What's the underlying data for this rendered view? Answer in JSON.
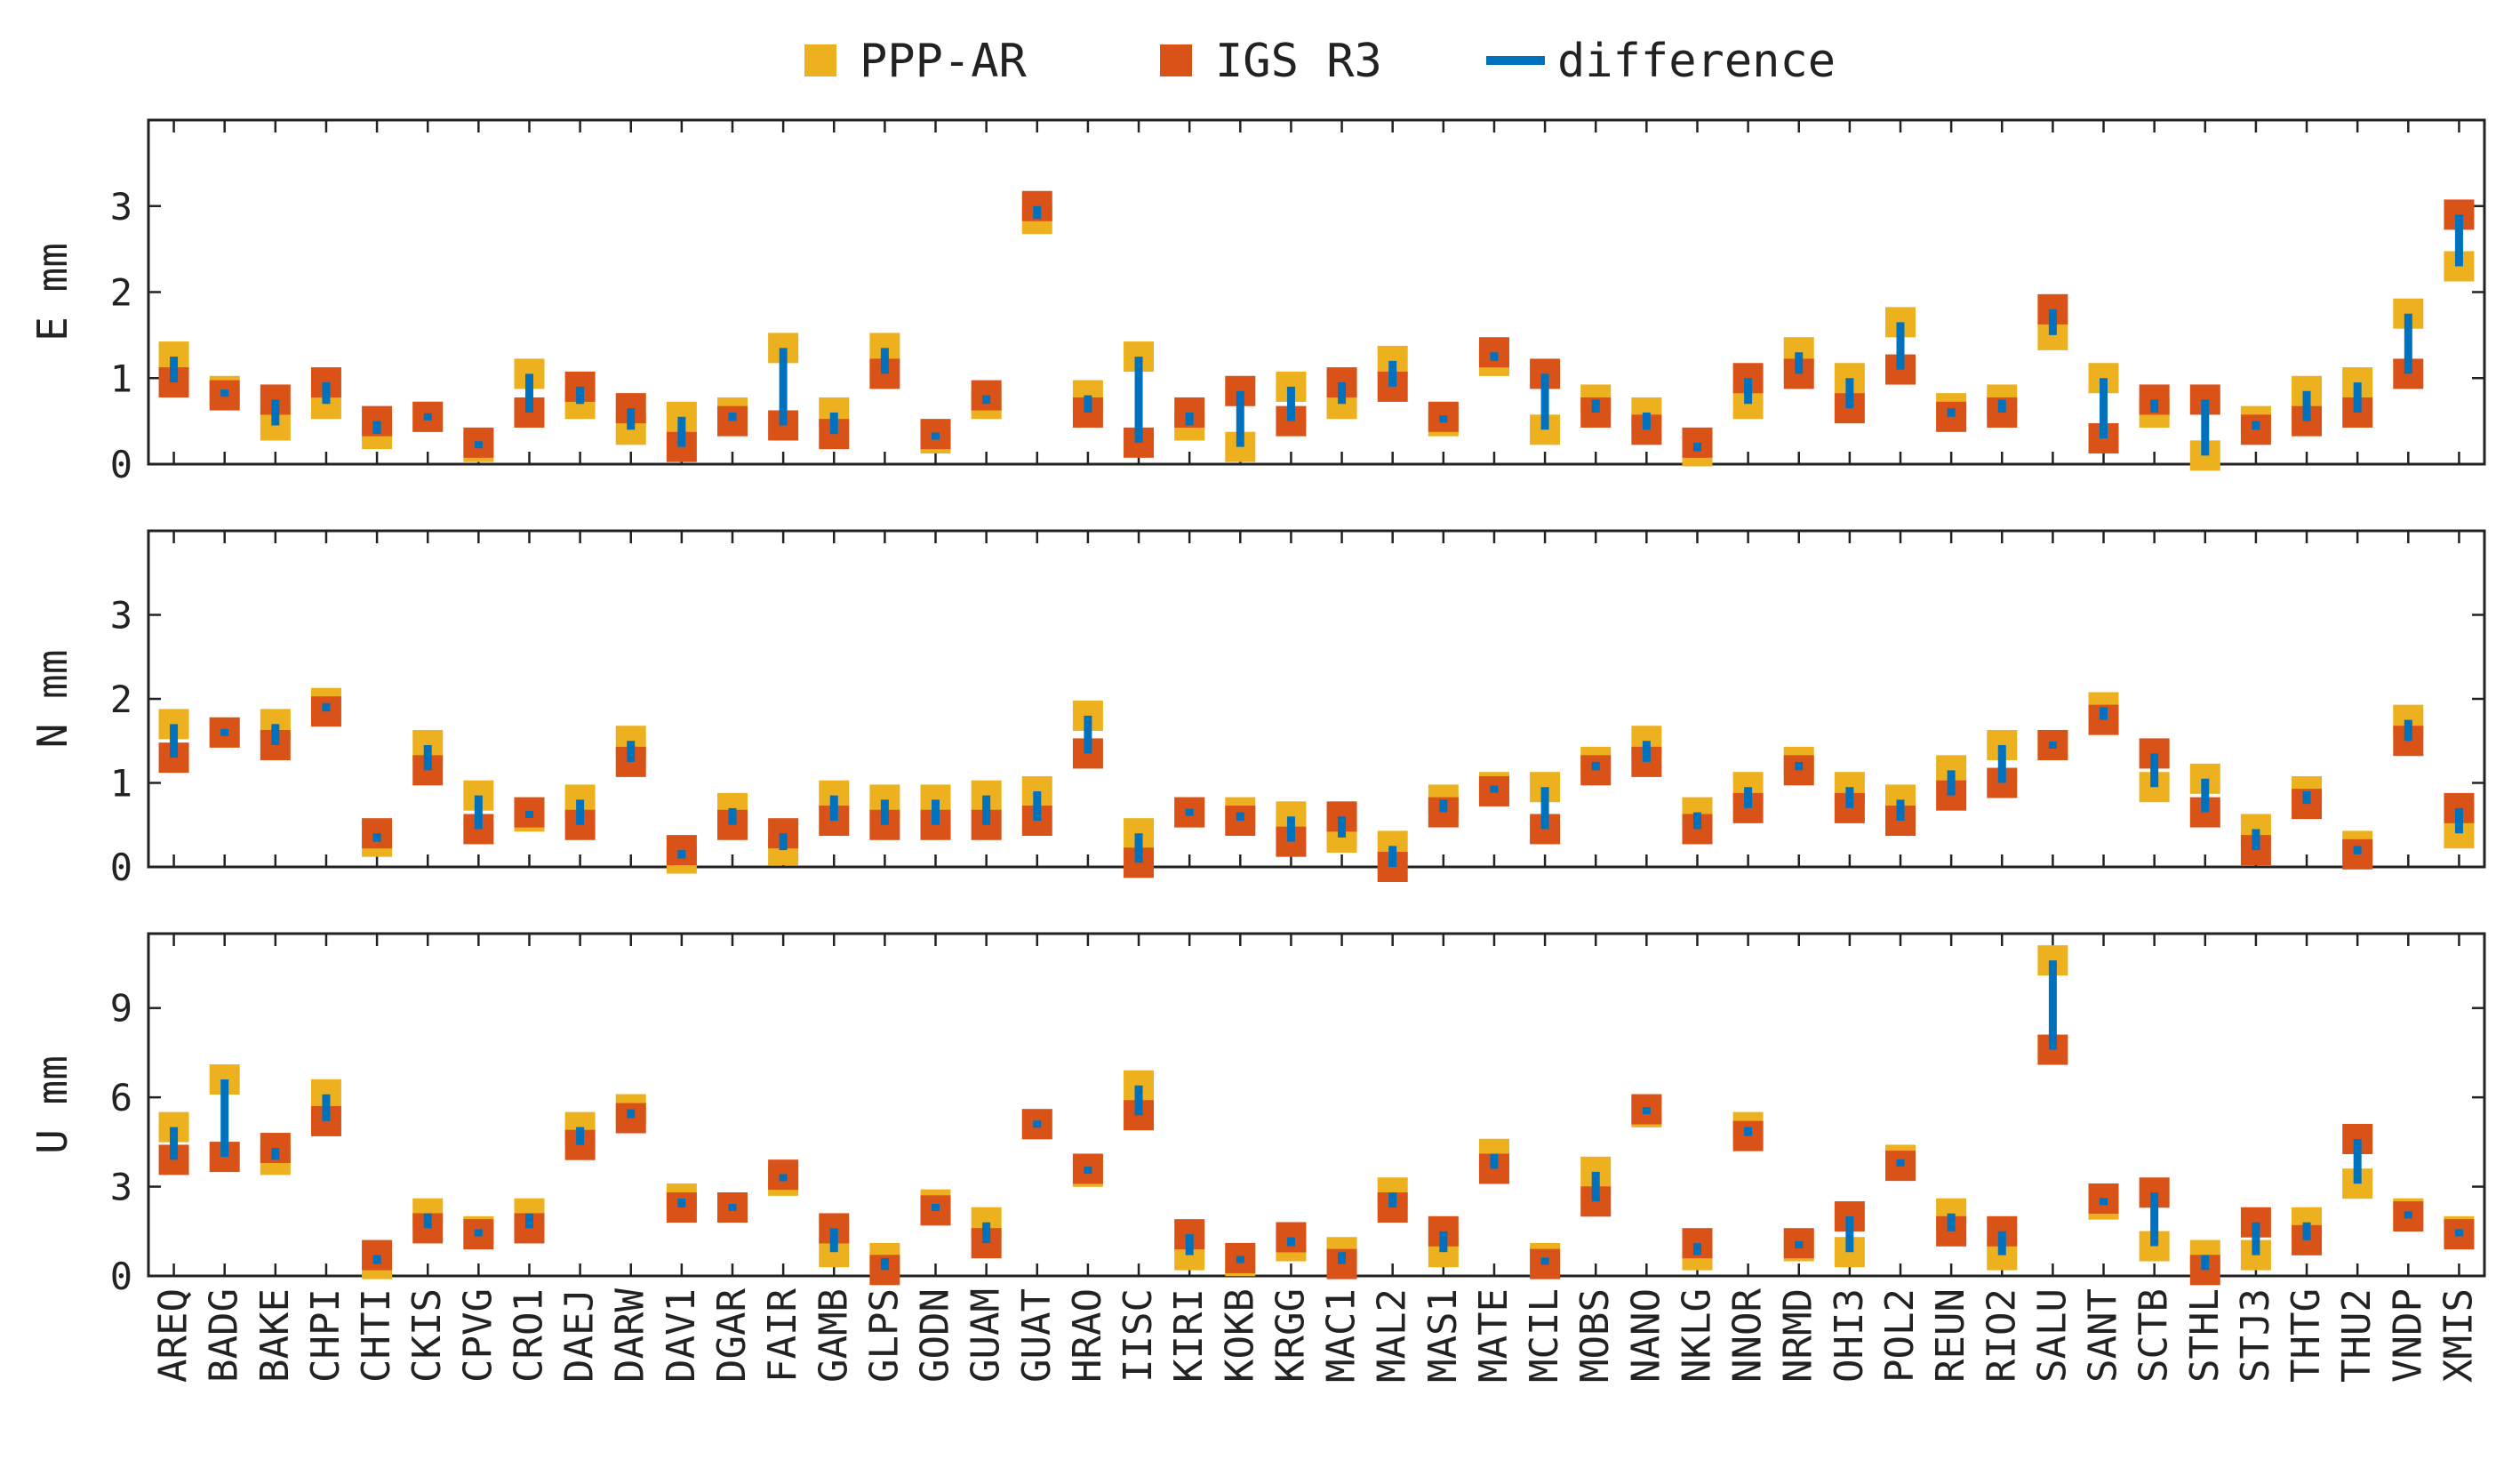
{
  "chart_data": {
    "type": "scatter",
    "legend": {
      "placement": "top-center",
      "entries": [
        {
          "name": "PPP-AR",
          "marker": "square",
          "color": "#EDB120"
        },
        {
          "name": "IGS R3",
          "marker": "square",
          "color": "#D95319"
        },
        {
          "name": "difference",
          "marker": "line",
          "color": "#0072BD"
        }
      ]
    },
    "stations": [
      "AREQ",
      "BADG",
      "BAKE",
      "CHPI",
      "CHTI",
      "CKIS",
      "CPVG",
      "CRO1",
      "DAEJ",
      "DARW",
      "DAV1",
      "DGAR",
      "FAIR",
      "GAMB",
      "GLPS",
      "GODN",
      "GUAM",
      "GUAT",
      "HRAO",
      "IISC",
      "KIRI",
      "KOKB",
      "KRGG",
      "MAC1",
      "MAL2",
      "MAS1",
      "MATE",
      "MCIL",
      "MOBS",
      "NANO",
      "NKLG",
      "NNOR",
      "NRMD",
      "OHI3",
      "POL2",
      "REUN",
      "RIO2",
      "SALU",
      "SANT",
      "SCTB",
      "STHL",
      "STJ3",
      "THTG",
      "THU2",
      "VNDP",
      "XMIS"
    ],
    "panels": [
      {
        "ylabel": "E mm",
        "ylim": [
          0,
          4
        ],
        "yticks": [
          0,
          1,
          2,
          3
        ],
        "ppp_ar": [
          1.25,
          0.85,
          0.45,
          0.7,
          0.35,
          0.55,
          0.2,
          1.05,
          0.7,
          0.4,
          0.55,
          0.6,
          1.35,
          0.6,
          1.35,
          0.3,
          0.7,
          2.85,
          0.8,
          1.25,
          0.45,
          0.2,
          0.9,
          0.7,
          1.2,
          0.5,
          1.2,
          0.4,
          0.75,
          0.6,
          0.15,
          0.7,
          1.3,
          1.0,
          1.65,
          0.65,
          0.75,
          1.5,
          1.0,
          0.6,
          0.1,
          0.5,
          0.85,
          0.95,
          1.75,
          2.3
        ],
        "igs_r3": [
          0.95,
          0.8,
          0.75,
          0.95,
          0.5,
          0.55,
          0.25,
          0.6,
          0.9,
          0.65,
          0.2,
          0.5,
          0.45,
          0.35,
          1.05,
          0.35,
          0.8,
          3.0,
          0.6,
          0.25,
          0.6,
          0.85,
          0.5,
          0.95,
          0.9,
          0.55,
          1.3,
          1.05,
          0.6,
          0.4,
          0.25,
          1.0,
          1.05,
          0.65,
          1.1,
          0.55,
          0.6,
          1.8,
          0.3,
          0.75,
          0.75,
          0.4,
          0.5,
          0.6,
          1.05,
          2.9
        ]
      },
      {
        "ylabel": "N mm",
        "ylim": [
          0,
          4
        ],
        "yticks": [
          0,
          1,
          2,
          3
        ],
        "ppp_ar": [
          1.7,
          1.6,
          1.7,
          1.95,
          0.3,
          1.45,
          0.85,
          0.6,
          0.8,
          1.5,
          0.1,
          0.7,
          0.2,
          0.85,
          0.8,
          0.8,
          0.85,
          0.9,
          1.8,
          0.4,
          0.65,
          0.65,
          0.6,
          0.35,
          0.25,
          0.8,
          0.95,
          0.95,
          1.25,
          1.5,
          0.65,
          0.95,
          1.25,
          0.95,
          0.8,
          1.15,
          1.45,
          1.45,
          1.9,
          0.95,
          1.05,
          0.45,
          0.9,
          0.25,
          1.75,
          0.4
        ],
        "igs_r3": [
          1.3,
          1.6,
          1.45,
          1.85,
          0.4,
          1.15,
          0.45,
          0.65,
          0.5,
          1.25,
          0.2,
          0.5,
          0.4,
          0.55,
          0.5,
          0.5,
          0.5,
          0.55,
          1.35,
          0.05,
          0.65,
          0.55,
          0.3,
          0.6,
          0.0,
          0.65,
          0.9,
          0.45,
          1.15,
          1.25,
          0.45,
          0.7,
          1.15,
          0.7,
          0.55,
          0.85,
          1.0,
          1.45,
          1.75,
          1.35,
          0.65,
          0.2,
          0.75,
          0.15,
          1.5,
          0.7
        ]
      },
      {
        "ylabel": "U mm",
        "ylim": [
          0,
          11.5
        ],
        "yticks": [
          0,
          3,
          6,
          9
        ],
        "ppp_ar": [
          5.0,
          6.6,
          3.9,
          6.1,
          0.4,
          2.1,
          1.5,
          2.1,
          5.0,
          5.6,
          2.6,
          2.3,
          3.2,
          0.8,
          0.6,
          2.4,
          1.8,
          5.1,
          3.5,
          6.4,
          0.7,
          0.5,
          1.0,
          0.8,
          2.8,
          0.8,
          4.1,
          0.6,
          3.5,
          5.5,
          0.7,
          5.0,
          1.0,
          0.8,
          3.9,
          2.1,
          0.7,
          10.6,
          2.4,
          1.0,
          0.7,
          0.7,
          1.8,
          3.1,
          2.1,
          1.5
        ],
        "igs_r3": [
          3.9,
          4.0,
          4.3,
          5.2,
          0.7,
          1.6,
          1.4,
          1.6,
          4.4,
          5.3,
          2.3,
          2.3,
          3.4,
          1.6,
          0.2,
          2.2,
          1.1,
          5.1,
          3.6,
          5.4,
          1.4,
          0.6,
          1.3,
          0.4,
          2.3,
          1.5,
          3.6,
          0.4,
          2.5,
          5.6,
          1.1,
          4.7,
          1.1,
          2.0,
          3.7,
          1.5,
          1.5,
          7.6,
          2.6,
          2.8,
          0.2,
          1.8,
          1.2,
          4.6,
          2.0,
          1.4
        ]
      }
    ]
  }
}
